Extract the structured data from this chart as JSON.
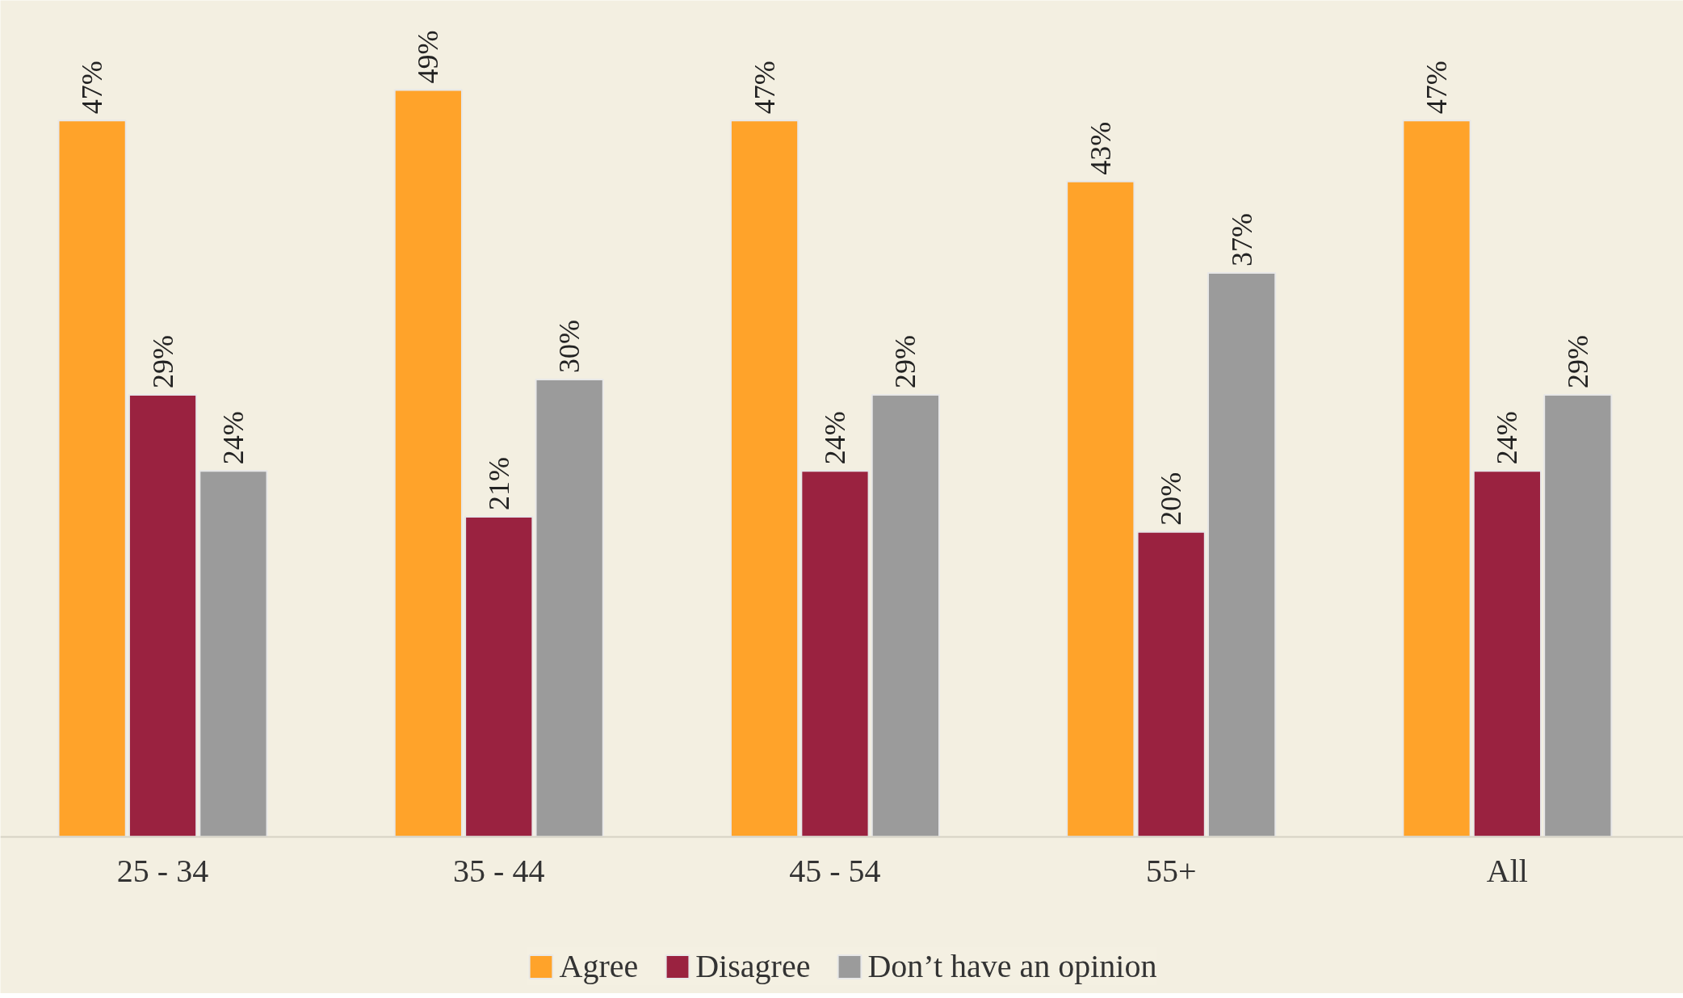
{
  "chart_data": {
    "type": "bar",
    "categories": [
      "25 - 34",
      "35 - 44",
      "45 - 54",
      "55+",
      "All"
    ],
    "series": [
      {
        "name": "Agree",
        "color": "#ffa32a",
        "values": [
          47,
          49,
          47,
          43,
          47
        ],
        "value_labels": [
          "47%",
          "49%",
          "47%",
          "43%",
          "47%"
        ]
      },
      {
        "name": "Disagree",
        "color": "#9a2240",
        "values": [
          29,
          21,
          24,
          20,
          24
        ],
        "value_labels": [
          "29%",
          "21%",
          "24%",
          "20%",
          "24%"
        ]
      },
      {
        "name": "Don’t have an opinion",
        "color": "#9b9b9b",
        "values": [
          24,
          30,
          29,
          37,
          29
        ],
        "value_labels": [
          "24%",
          "30%",
          "29%",
          "37%",
          "29%"
        ]
      }
    ],
    "tick_labels": "x",
    "grid": false,
    "legend": "bottom"
  }
}
